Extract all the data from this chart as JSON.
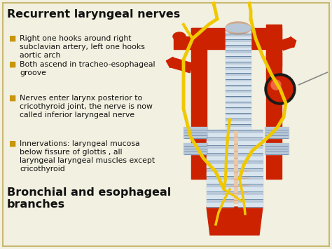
{
  "title": "Recurrent laryngeal nerves",
  "title_fontsize": 11.5,
  "bullet_points": [
    "Right one hooks around right\nsubclavian artery, left one hooks\naortic arch",
    "Both ascend in tracheo-esophageal\ngroove",
    "Nerves enter larynx posterior to\ncricothyroid joint, the nerve is now\ncalled inferior laryngeal nerve",
    "Innervations: laryngeal mucosa\nbelow fissure of glottis , all\nlaryngeal laryngeal muscles except\ncricothyroid"
  ],
  "bullet_fontsize": 7.8,
  "bullet_color": "#C8960C",
  "subtitle": "Bronchial and esophageal\nbranches",
  "subtitle_fontsize": 11.5,
  "background_color": "#F2F0E0",
  "border_color": "#C8B870",
  "red": "#CC2200",
  "dark_red": "#991100",
  "light_pink": "#F0C8A0",
  "gray_blue": "#B8C8D8",
  "stripe_white": "#E8EEF4",
  "yellow": "#F0C800",
  "black": "#111111",
  "white": "#FFFFFF"
}
